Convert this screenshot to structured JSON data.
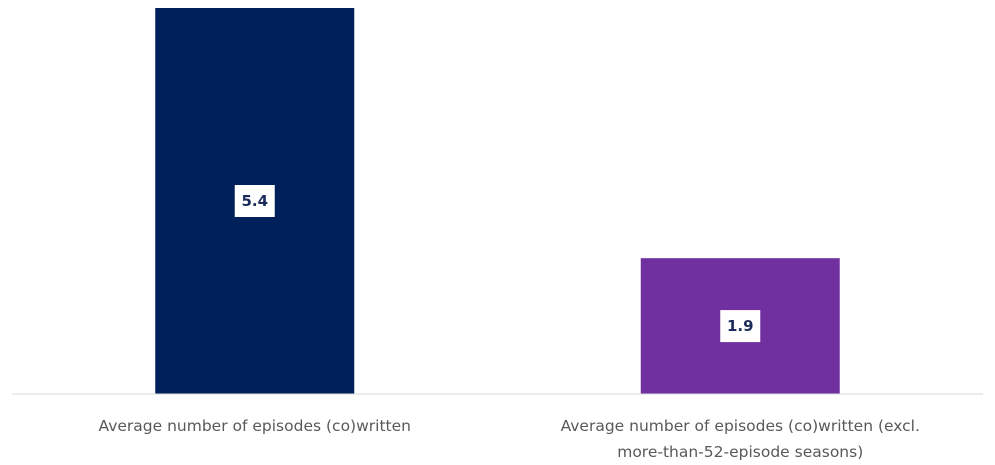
{
  "chart_data": {
    "type": "bar",
    "categories": [
      [
        "Average number of episodes (co)written"
      ],
      [
        "Average number of episodes (co)written (excl.",
        "more-than-52-episode seasons)"
      ]
    ],
    "values": [
      5.4,
      1.9
    ],
    "data_labels": [
      "5.4",
      "1.9"
    ],
    "colors": [
      "#00205b",
      "#7030a0"
    ],
    "axis_color": "#d9d9d9",
    "ylim": [
      0,
      5.4
    ],
    "gridlines": false,
    "legend": "none"
  }
}
